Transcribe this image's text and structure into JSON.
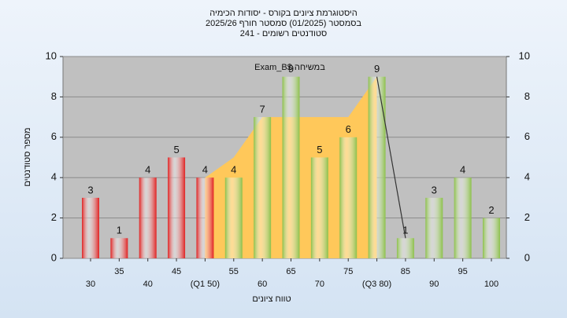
{
  "chart_data": {
    "type": "bar",
    "title": [
      "היסטוגרמת ציונים בקורס - יסודות הכימיה",
      "בסמסטר  (01/2025)  סמסטר חורף 2025/26",
      "סטודנטים רשומים - 241"
    ],
    "annotation": "Exam_B$ במשיחה",
    "xlabel": "טווח ציונים",
    "ylabel": "מספר סטודנטים",
    "categories": [
      "30",
      "35",
      "40",
      "45",
      "(Q1 50)",
      "55",
      "60",
      "65",
      "70",
      "75",
      "(Q3 80)",
      "85",
      "90",
      "95",
      "100"
    ],
    "series": [
      {
        "type": "bar",
        "values": [
          3,
          1,
          4,
          5,
          4,
          4,
          7,
          9,
          5,
          6,
          9,
          1,
          3,
          4,
          2
        ],
        "colors": [
          "#e02020",
          "#e02020",
          "#e02020",
          "#e02020",
          "#e02020",
          "#8cc04a",
          "#8cc04a",
          "#8cc04a",
          "#8cc04a",
          "#8cc04a",
          "#8cc04a",
          "#8cc04a",
          "#8cc04a",
          "#8cc04a",
          "#8cc04a"
        ]
      },
      {
        "type": "area",
        "color": "#ffc85a",
        "values": [
          null,
          null,
          null,
          null,
          4,
          5,
          7,
          7,
          7,
          7,
          9,
          null,
          null,
          null,
          null
        ]
      },
      {
        "type": "line",
        "color": "#333333",
        "values": [
          null,
          null,
          null,
          null,
          null,
          null,
          null,
          null,
          null,
          null,
          9,
          1,
          null,
          null,
          null
        ]
      }
    ],
    "ylim": [
      0,
      10
    ],
    "yticks": [
      0,
      2,
      4,
      6,
      8,
      10
    ],
    "y2lim": [
      0,
      10
    ],
    "y2ticks": [
      0,
      2,
      4,
      6,
      8,
      10
    ],
    "grid": true
  }
}
